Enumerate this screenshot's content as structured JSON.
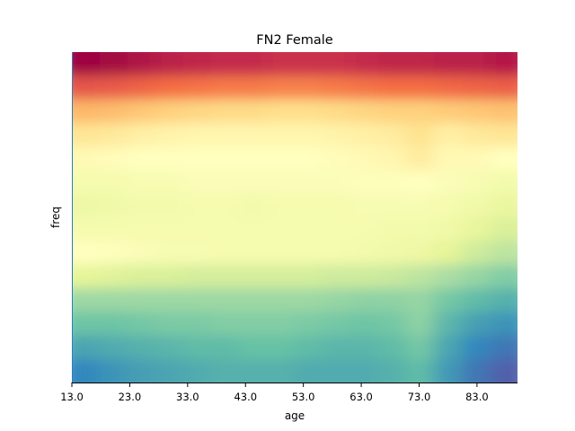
{
  "chart_data": {
    "type": "heatmap",
    "title": "FN2 Female",
    "xlabel": "age",
    "ylabel": "freq",
    "x_tick_labels": [
      "13.0",
      "23.0",
      "33.0",
      "43.0",
      "53.0",
      "63.0",
      "73.0",
      "83.0"
    ],
    "x_tick_values": [
      13,
      23,
      33,
      43,
      53,
      63,
      73,
      83
    ],
    "xlim": [
      13,
      90
    ],
    "colormap": "Spectral_r",
    "colormap_stops": [
      "#5e4fa2",
      "#3288bd",
      "#66c2a5",
      "#abdda4",
      "#e6f598",
      "#ffffbf",
      "#fee08b",
      "#fdae61",
      "#f46d43",
      "#d53e4f",
      "#9e0142"
    ],
    "frequency_bins_top_to_bottom": 14,
    "age_columns": [
      13,
      18,
      23,
      28,
      33,
      38,
      43,
      48,
      53,
      58,
      63,
      68,
      73,
      78,
      83,
      88
    ],
    "intensity_rows_top_to_bottom": [
      [
        1.0,
        0.99,
        0.97,
        0.95,
        0.94,
        0.93,
        0.93,
        0.92,
        0.92,
        0.92,
        0.93,
        0.94,
        0.94,
        0.95,
        0.95,
        0.96
      ],
      [
        0.85,
        0.84,
        0.82,
        0.8,
        0.79,
        0.78,
        0.78,
        0.77,
        0.77,
        0.78,
        0.79,
        0.8,
        0.8,
        0.81,
        0.82,
        0.83
      ],
      [
        0.68,
        0.67,
        0.65,
        0.63,
        0.62,
        0.61,
        0.61,
        0.6,
        0.6,
        0.61,
        0.62,
        0.63,
        0.63,
        0.64,
        0.65,
        0.66
      ],
      [
        0.58,
        0.57,
        0.55,
        0.54,
        0.53,
        0.53,
        0.53,
        0.53,
        0.53,
        0.54,
        0.55,
        0.56,
        0.59,
        0.55,
        0.57,
        0.58
      ],
      [
        0.52,
        0.51,
        0.5,
        0.5,
        0.5,
        0.5,
        0.5,
        0.5,
        0.5,
        0.51,
        0.52,
        0.53,
        0.56,
        0.52,
        0.52,
        0.5
      ],
      [
        0.46,
        0.46,
        0.47,
        0.47,
        0.48,
        0.48,
        0.48,
        0.48,
        0.48,
        0.48,
        0.49,
        0.49,
        0.5,
        0.48,
        0.47,
        0.45
      ],
      [
        0.43,
        0.44,
        0.45,
        0.45,
        0.46,
        0.46,
        0.45,
        0.46,
        0.46,
        0.46,
        0.47,
        0.47,
        0.47,
        0.46,
        0.44,
        0.42
      ],
      [
        0.46,
        0.46,
        0.46,
        0.46,
        0.46,
        0.46,
        0.46,
        0.46,
        0.46,
        0.46,
        0.46,
        0.45,
        0.45,
        0.44,
        0.41,
        0.38
      ],
      [
        0.5,
        0.49,
        0.48,
        0.47,
        0.47,
        0.46,
        0.46,
        0.46,
        0.46,
        0.46,
        0.45,
        0.44,
        0.43,
        0.4,
        0.36,
        0.33
      ],
      [
        0.4,
        0.39,
        0.38,
        0.38,
        0.37,
        0.37,
        0.37,
        0.37,
        0.37,
        0.36,
        0.36,
        0.35,
        0.33,
        0.3,
        0.27,
        0.24
      ],
      [
        0.28,
        0.28,
        0.28,
        0.28,
        0.28,
        0.28,
        0.28,
        0.28,
        0.28,
        0.27,
        0.26,
        0.26,
        0.27,
        0.22,
        0.19,
        0.17
      ],
      [
        0.21,
        0.21,
        0.22,
        0.23,
        0.23,
        0.24,
        0.24,
        0.24,
        0.23,
        0.22,
        0.21,
        0.22,
        0.26,
        0.18,
        0.14,
        0.12
      ],
      [
        0.15,
        0.16,
        0.17,
        0.18,
        0.19,
        0.19,
        0.2,
        0.2,
        0.19,
        0.18,
        0.18,
        0.19,
        0.22,
        0.15,
        0.1,
        0.07
      ],
      [
        0.1,
        0.12,
        0.14,
        0.15,
        0.16,
        0.17,
        0.17,
        0.17,
        0.16,
        0.16,
        0.16,
        0.17,
        0.19,
        0.13,
        0.07,
        0.03
      ]
    ]
  }
}
